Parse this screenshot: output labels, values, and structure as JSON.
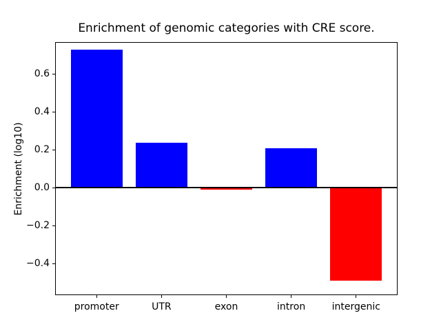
{
  "figure": {
    "background": "#ffffff",
    "axes_border_color": "#000000",
    "tick_color": "#000000",
    "text_color": "#000000"
  },
  "chart_data": {
    "type": "bar",
    "title": "Enrichment of genomic categories with CRE score.",
    "xlabel": "",
    "ylabel": "Enrichment (log10)",
    "categories": [
      "promoter",
      "UTR",
      "exon",
      "intron",
      "intergenic"
    ],
    "values": [
      0.73,
      0.24,
      -0.01,
      0.21,
      -0.49
    ],
    "bar_colors": [
      "#0000ff",
      "#0000ff",
      "#ff0000",
      "#0000ff",
      "#ff0000"
    ],
    "positive_color": "#0000ff",
    "negative_color": "#ff0000",
    "bar_width": 0.8,
    "xlim": [
      -0.64,
      4.64
    ],
    "ylim": [
      -0.567,
      0.771
    ],
    "yticks": [
      {
        "value": 0.6,
        "label": "0.6"
      },
      {
        "value": 0.4,
        "label": "0.4"
      },
      {
        "value": 0.2,
        "label": "0.2"
      },
      {
        "value": 0.0,
        "label": "0.0"
      },
      {
        "value": -0.2,
        "label": "−0.2"
      },
      {
        "value": -0.4,
        "label": "−0.4"
      }
    ],
    "zero_line": {
      "color": "#000000",
      "thickness_px": 2
    },
    "grid": false,
    "legend": null
  }
}
